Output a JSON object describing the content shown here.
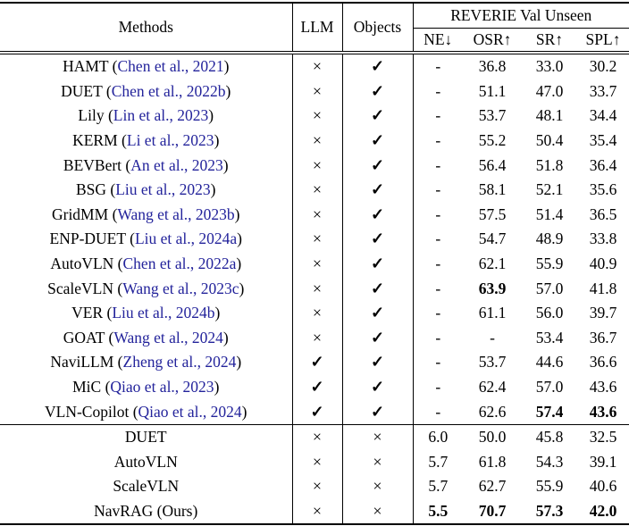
{
  "table": {
    "header": {
      "methods": "Methods",
      "llm": "LLM",
      "objects": "Objects",
      "group": "REVERIE Val Unseen",
      "metrics": [
        "NE↓",
        "OSR↑",
        "SR↑",
        "SPL↑"
      ]
    },
    "symbols": {
      "yes": "✓",
      "no": "×"
    },
    "colors": {
      "citation": "#23239b"
    },
    "groups": [
      {
        "rows": [
          {
            "name": "HAMT",
            "citation": "Chen et al., 2021",
            "llm": false,
            "objects": true,
            "ne": "-",
            "osr": "36.8",
            "sr": "33.0",
            "spl": "30.2",
            "bold": []
          },
          {
            "name": "DUET",
            "citation": "Chen et al., 2022b",
            "llm": false,
            "objects": true,
            "ne": "-",
            "osr": "51.1",
            "sr": "47.0",
            "spl": "33.7",
            "bold": []
          },
          {
            "name": "Lily",
            "citation": "Lin et al., 2023",
            "llm": false,
            "objects": true,
            "ne": "-",
            "osr": "53.7",
            "sr": "48.1",
            "spl": "34.4",
            "bold": []
          },
          {
            "name": "KERM",
            "citation": "Li et al., 2023",
            "llm": false,
            "objects": true,
            "ne": "-",
            "osr": "55.2",
            "sr": "50.4",
            "spl": "35.4",
            "bold": []
          },
          {
            "name": "BEVBert",
            "citation": "An et al., 2023",
            "llm": false,
            "objects": true,
            "ne": "-",
            "osr": "56.4",
            "sr": "51.8",
            "spl": "36.4",
            "bold": []
          },
          {
            "name": "BSG",
            "citation": "Liu et al., 2023",
            "llm": false,
            "objects": true,
            "ne": "-",
            "osr": "58.1",
            "sr": "52.1",
            "spl": "35.6",
            "bold": []
          },
          {
            "name": "GridMM",
            "citation": "Wang et al., 2023b",
            "llm": false,
            "objects": true,
            "ne": "-",
            "osr": "57.5",
            "sr": "51.4",
            "spl": "36.5",
            "bold": []
          },
          {
            "name": "ENP-DUET",
            "citation": "Liu et al., 2024a",
            "llm": false,
            "objects": true,
            "ne": "-",
            "osr": "54.7",
            "sr": "48.9",
            "spl": "33.8",
            "bold": []
          },
          {
            "name": "AutoVLN",
            "citation": "Chen et al., 2022a",
            "llm": false,
            "objects": true,
            "ne": "-",
            "osr": "62.1",
            "sr": "55.9",
            "spl": "40.9",
            "bold": []
          },
          {
            "name": "ScaleVLN",
            "citation": "Wang et al., 2023c",
            "llm": false,
            "objects": true,
            "ne": "-",
            "osr": "63.9",
            "sr": "57.0",
            "spl": "41.8",
            "bold": [
              "osr"
            ]
          },
          {
            "name": "VER",
            "citation": "Liu et al., 2024b",
            "llm": false,
            "objects": true,
            "ne": "-",
            "osr": "61.1",
            "sr": "56.0",
            "spl": "39.7",
            "bold": []
          },
          {
            "name": "GOAT",
            "citation": "Wang et al., 2024",
            "llm": false,
            "objects": true,
            "ne": "-",
            "osr": "-",
            "sr": "53.4",
            "spl": "36.7",
            "bold": []
          },
          {
            "name": "NaviLLM",
            "citation": "Zheng et al., 2024",
            "llm": true,
            "objects": true,
            "ne": "-",
            "osr": "53.7",
            "sr": "44.6",
            "spl": "36.6",
            "bold": []
          },
          {
            "name": "MiC",
            "citation": "Qiao et al., 2023",
            "llm": true,
            "objects": true,
            "ne": "-",
            "osr": "62.4",
            "sr": "57.0",
            "spl": "43.6",
            "bold": []
          },
          {
            "name": "VLN-Copilot",
            "citation": "Qiao et al., 2024",
            "llm": true,
            "objects": true,
            "ne": "-",
            "osr": "62.6",
            "sr": "57.4",
            "spl": "43.6",
            "bold": [
              "sr",
              "spl"
            ]
          }
        ]
      },
      {
        "rows": [
          {
            "name": "DUET",
            "citation": null,
            "llm": false,
            "objects": false,
            "ne": "6.0",
            "osr": "50.0",
            "sr": "45.8",
            "spl": "32.5",
            "bold": []
          },
          {
            "name": "AutoVLN",
            "citation": null,
            "llm": false,
            "objects": false,
            "ne": "5.7",
            "osr": "61.8",
            "sr": "54.3",
            "spl": "39.1",
            "bold": []
          },
          {
            "name": "ScaleVLN",
            "citation": null,
            "llm": false,
            "objects": false,
            "ne": "5.7",
            "osr": "62.7",
            "sr": "55.9",
            "spl": "40.6",
            "bold": []
          },
          {
            "name": "NavRAG (Ours)",
            "citation": null,
            "llm": false,
            "objects": false,
            "ne": "5.5",
            "osr": "70.7",
            "sr": "57.3",
            "spl": "42.0",
            "bold": [
              "ne",
              "osr",
              "sr",
              "spl"
            ]
          }
        ]
      }
    ]
  }
}
